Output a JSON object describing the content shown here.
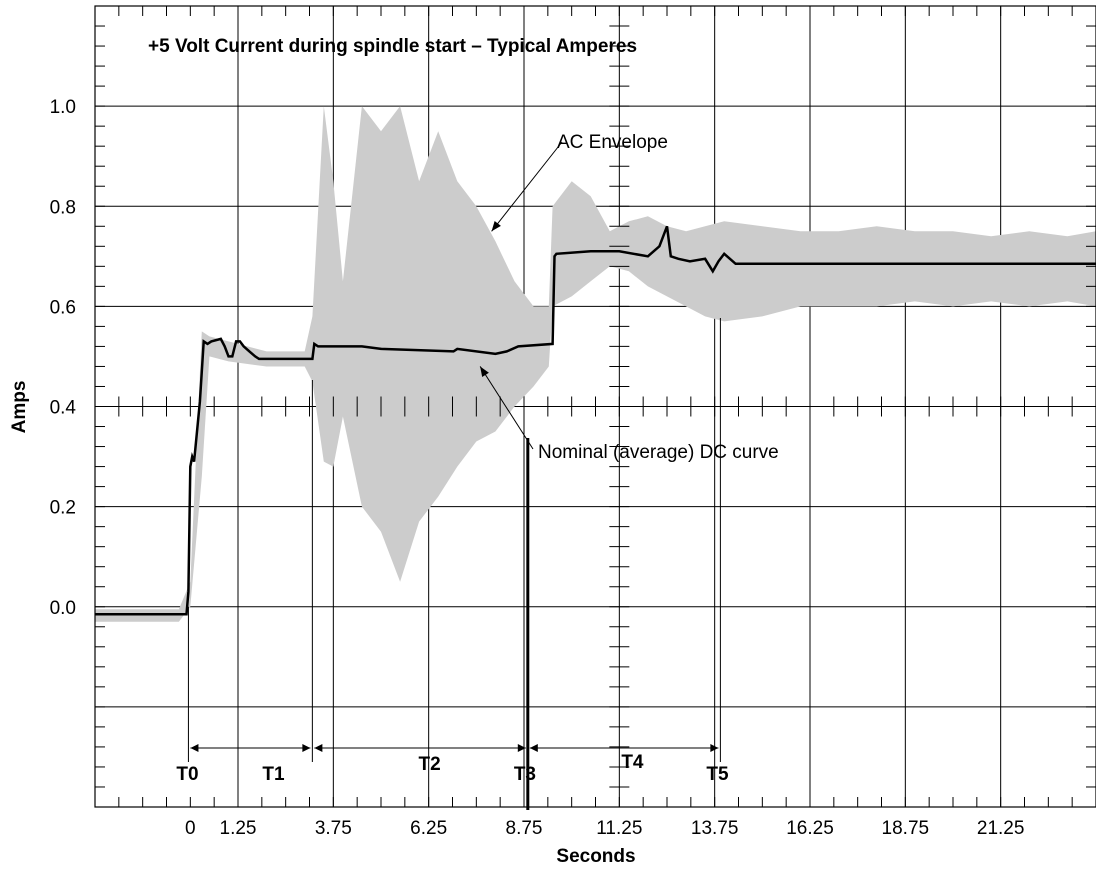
{
  "chart_data": {
    "type": "line",
    "title": "+5 Volt Current during spindle start – Typical Amperes",
    "xlabel": "Seconds",
    "ylabel": "Amps",
    "xlim": [
      -2.5,
      23.75
    ],
    "ylim": [
      -0.4,
      1.2
    ],
    "x_ticks": [
      0,
      1.25,
      3.75,
      6.25,
      8.75,
      11.25,
      13.75,
      16.25,
      18.75,
      21.25
    ],
    "x_tick_labels": [
      "0",
      "1.25",
      "3.75",
      "6.25",
      "8.75",
      "11.25",
      "13.75",
      "16.25",
      "18.75",
      "21.25"
    ],
    "x_gridlines": [
      1.25,
      3.75,
      6.25,
      8.75,
      11.25,
      13.75,
      16.25,
      18.75,
      21.25
    ],
    "y_ticks": [
      0,
      0.2,
      0.4,
      0.6,
      0.8,
      1.0
    ],
    "y_tick_labels": [
      "0.0",
      "0.2",
      "0.4",
      "0.6",
      "0.8",
      "1.0"
    ],
    "y_gridlines": [
      -0.2,
      0,
      0.2,
      0.4,
      0.6,
      0.8,
      1.0
    ],
    "grid": true,
    "series": [
      {
        "name": "Nominal (average) DC curve",
        "color": "#000000",
        "x": [
          -2.5,
          -0.1,
          -0.05,
          0.0,
          0.05,
          0.1,
          0.25,
          0.35,
          0.45,
          0.55,
          0.8,
          0.9,
          1.0,
          1.1,
          1.2,
          1.3,
          1.4,
          1.55,
          1.7,
          1.8,
          3.2,
          3.25,
          3.35,
          4.5,
          5.0,
          6.9,
          7.0,
          8.0,
          8.3,
          8.6,
          9.5,
          9.55,
          9.6,
          10.5,
          11.25,
          12.0,
          12.3,
          12.5,
          12.6,
          12.8,
          13.1,
          13.5,
          13.7,
          13.85,
          14.0,
          14.3,
          14.5,
          16.0,
          18.75,
          23.75
        ],
        "y": [
          -0.015,
          -0.015,
          0.03,
          0.28,
          0.3,
          0.29,
          0.41,
          0.53,
          0.525,
          0.53,
          0.535,
          0.52,
          0.5,
          0.5,
          0.53,
          0.53,
          0.52,
          0.51,
          0.5,
          0.495,
          0.495,
          0.525,
          0.52,
          0.52,
          0.515,
          0.51,
          0.515,
          0.505,
          0.51,
          0.52,
          0.525,
          0.7,
          0.705,
          0.71,
          0.71,
          0.7,
          0.72,
          0.76,
          0.7,
          0.695,
          0.69,
          0.695,
          0.67,
          0.69,
          0.705,
          0.685,
          0.685,
          0.685,
          0.685,
          0.685
        ]
      }
    ],
    "envelope": {
      "name": "AC Envelope",
      "color": "#cccccc",
      "x": [
        -2.5,
        -0.3,
        0.0,
        0.3,
        0.5,
        1.0,
        2.0,
        3.0,
        3.2,
        3.5,
        3.75,
        4.0,
        4.5,
        5.0,
        5.5,
        6.0,
        6.5,
        7.0,
        7.5,
        8.0,
        8.5,
        9.0,
        9.4,
        9.5,
        10.0,
        10.5,
        11.0,
        11.5,
        12.0,
        12.5,
        13.0,
        13.5,
        14.0,
        15.0,
        16.0,
        17.0,
        18.0,
        19.0,
        20.0,
        21.0,
        22.0,
        23.0,
        23.75
      ],
      "upper": [
        -0.005,
        -0.005,
        0.05,
        0.55,
        0.54,
        0.53,
        0.51,
        0.51,
        0.58,
        1.0,
        0.85,
        0.65,
        1.0,
        0.95,
        1.0,
        0.85,
        0.95,
        0.85,
        0.8,
        0.73,
        0.65,
        0.6,
        0.6,
        0.8,
        0.85,
        0.82,
        0.75,
        0.77,
        0.78,
        0.76,
        0.75,
        0.76,
        0.77,
        0.76,
        0.75,
        0.75,
        0.76,
        0.75,
        0.75,
        0.74,
        0.75,
        0.74,
        0.75
      ],
      "lower": [
        -0.03,
        -0.03,
        0.0,
        0.26,
        0.5,
        0.49,
        0.48,
        0.48,
        0.45,
        0.29,
        0.28,
        0.38,
        0.2,
        0.15,
        0.05,
        0.17,
        0.22,
        0.28,
        0.33,
        0.35,
        0.4,
        0.44,
        0.48,
        0.6,
        0.62,
        0.65,
        0.68,
        0.67,
        0.64,
        0.62,
        0.6,
        0.58,
        0.57,
        0.58,
        0.6,
        0.6,
        0.6,
        0.61,
        0.6,
        0.61,
        0.6,
        0.61,
        0.6
      ]
    },
    "phase_markers": [
      {
        "label": "T0",
        "x": -0.05
      },
      {
        "label": "T1",
        "x": 3.2
      },
      {
        "label": "T2",
        "x": 6.35
      },
      {
        "label": "T3",
        "x": 8.85
      },
      {
        "label": "T4",
        "x": 11.25
      },
      {
        "label": "T5",
        "x": 13.9
      }
    ],
    "annotations": [
      {
        "text": "AC Envelope",
        "x": 11.5,
        "y": 0.955,
        "arrow_to": {
          "x": 7.9,
          "y": 0.75
        }
      },
      {
        "text": "Nominal (average) DC curve",
        "x": 11.25,
        "y": 0.3,
        "arrow_to": {
          "x": 7.6,
          "y": 0.48
        }
      }
    ]
  }
}
